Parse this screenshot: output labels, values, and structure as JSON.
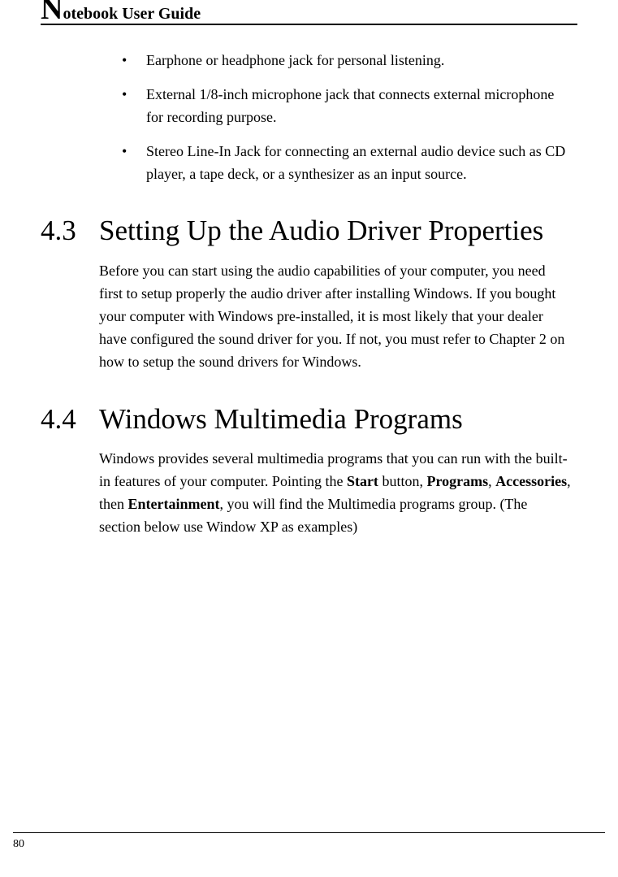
{
  "header": {
    "dropcap": "N",
    "rest": "otebook User Guide"
  },
  "bullets": [
    "Earphone or headphone jack for personal listening.",
    "External 1/8-inch microphone jack that connects external microphone for recording purpose.",
    "Stereo Line-In Jack for connecting an external audio device such as CD player, a tape deck, or a synthesizer as an input source."
  ],
  "sec43": {
    "num": "4.3",
    "title": "Setting Up the Audio Driver Properties",
    "para": "Before you can start using the audio capabilities of your computer, you need first to setup properly the audio driver after installing Windows. If you bought your computer with Windows pre-installed, it is most likely that your dealer have configured the sound driver for you. If not, you must refer to Chapter 2 on how to setup the sound drivers for Windows."
  },
  "sec44": {
    "num": "4.4",
    "title": "Windows Multimedia Programs",
    "para_pre": "Windows provides several multimedia programs that you can run with the built-in features of your computer. Pointing the ",
    "b1": "Start",
    "mid1": " button, ",
    "b2": "Programs",
    "mid2": ", ",
    "b3": "Accessories",
    "mid3": ", then ",
    "b4": "Entertainment",
    "post": ", you will find the Multimedia programs group. (The section below use Window XP as examples)"
  },
  "page_number": "80"
}
